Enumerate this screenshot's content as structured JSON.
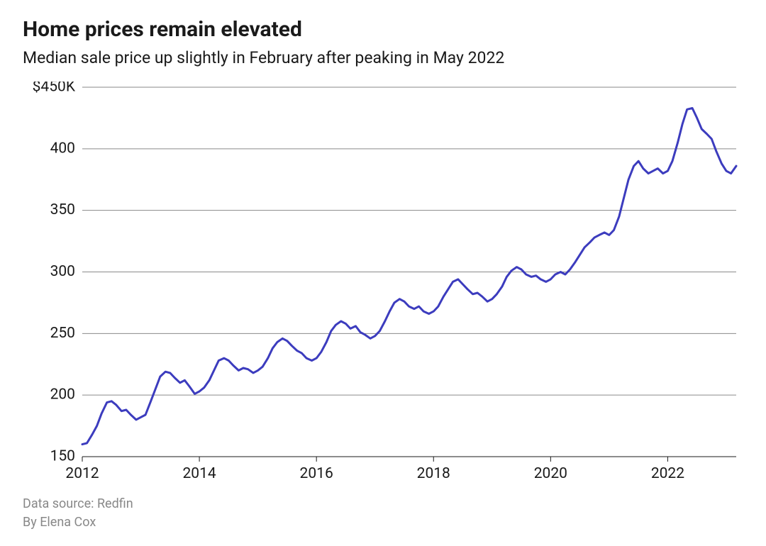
{
  "title": "Home prices remain elevated",
  "subtitle": "Median sale price up slightly in February after peaking in May 2022",
  "footer": {
    "source": "Data source: Redfin",
    "byline": "By Elena Cox"
  },
  "chart": {
    "type": "line",
    "background_color": "#ffffff",
    "grid_color": "#8a8a8a",
    "text_color": "#1a1a1a",
    "line_color": "#3c3cbe",
    "line_width": 3,
    "label_fontsize": 21,
    "title_fontsize": 30,
    "subtitle_fontsize": 23,
    "footer_fontsize": 18,
    "footer_color": "#888888",
    "x": {
      "min": 2012.0,
      "max": 2023.17,
      "ticks": [
        2012,
        2014,
        2016,
        2018,
        2020,
        2022
      ],
      "tick_labels": [
        "2012",
        "2014",
        "2016",
        "2018",
        "2020",
        "2022"
      ]
    },
    "y": {
      "min": 150,
      "max": 450,
      "ticks": [
        150,
        200,
        250,
        300,
        350,
        400,
        450
      ],
      "tick_labels": [
        "150",
        "200",
        "250",
        "300",
        "350",
        "400",
        "$450K"
      ],
      "show_baseline_for": [
        150
      ]
    },
    "series": [
      {
        "name": "median_sale_price_k",
        "points": [
          [
            2012.0,
            160
          ],
          [
            2012.08,
            161
          ],
          [
            2012.17,
            168
          ],
          [
            2012.25,
            175
          ],
          [
            2012.33,
            185
          ],
          [
            2012.42,
            194
          ],
          [
            2012.5,
            195
          ],
          [
            2012.58,
            192
          ],
          [
            2012.67,
            187
          ],
          [
            2012.75,
            188
          ],
          [
            2012.83,
            184
          ],
          [
            2012.92,
            180
          ],
          [
            2013.0,
            182
          ],
          [
            2013.08,
            184
          ],
          [
            2013.17,
            195
          ],
          [
            2013.25,
            205
          ],
          [
            2013.33,
            215
          ],
          [
            2013.42,
            219
          ],
          [
            2013.5,
            218
          ],
          [
            2013.58,
            214
          ],
          [
            2013.67,
            210
          ],
          [
            2013.75,
            212
          ],
          [
            2013.83,
            207
          ],
          [
            2013.92,
            201
          ],
          [
            2014.0,
            203
          ],
          [
            2014.08,
            206
          ],
          [
            2014.17,
            212
          ],
          [
            2014.25,
            220
          ],
          [
            2014.33,
            228
          ],
          [
            2014.42,
            230
          ],
          [
            2014.5,
            228
          ],
          [
            2014.58,
            224
          ],
          [
            2014.67,
            220
          ],
          [
            2014.75,
            222
          ],
          [
            2014.83,
            221
          ],
          [
            2014.92,
            218
          ],
          [
            2015.0,
            220
          ],
          [
            2015.08,
            223
          ],
          [
            2015.17,
            230
          ],
          [
            2015.25,
            238
          ],
          [
            2015.33,
            243
          ],
          [
            2015.42,
            246
          ],
          [
            2015.5,
            244
          ],
          [
            2015.58,
            240
          ],
          [
            2015.67,
            236
          ],
          [
            2015.75,
            234
          ],
          [
            2015.83,
            230
          ],
          [
            2015.92,
            228
          ],
          [
            2016.0,
            230
          ],
          [
            2016.08,
            235
          ],
          [
            2016.17,
            243
          ],
          [
            2016.25,
            252
          ],
          [
            2016.33,
            257
          ],
          [
            2016.42,
            260
          ],
          [
            2016.5,
            258
          ],
          [
            2016.58,
            254
          ],
          [
            2016.67,
            256
          ],
          [
            2016.75,
            251
          ],
          [
            2016.83,
            249
          ],
          [
            2016.92,
            246
          ],
          [
            2017.0,
            248
          ],
          [
            2017.08,
            252
          ],
          [
            2017.17,
            260
          ],
          [
            2017.25,
            268
          ],
          [
            2017.33,
            275
          ],
          [
            2017.42,
            278
          ],
          [
            2017.5,
            276
          ],
          [
            2017.58,
            272
          ],
          [
            2017.67,
            270
          ],
          [
            2017.75,
            272
          ],
          [
            2017.83,
            268
          ],
          [
            2017.92,
            266
          ],
          [
            2018.0,
            268
          ],
          [
            2018.08,
            272
          ],
          [
            2018.17,
            280
          ],
          [
            2018.25,
            286
          ],
          [
            2018.33,
            292
          ],
          [
            2018.42,
            294
          ],
          [
            2018.5,
            290
          ],
          [
            2018.58,
            286
          ],
          [
            2018.67,
            282
          ],
          [
            2018.75,
            283
          ],
          [
            2018.83,
            280
          ],
          [
            2018.92,
            276
          ],
          [
            2019.0,
            278
          ],
          [
            2019.08,
            282
          ],
          [
            2019.17,
            288
          ],
          [
            2019.25,
            296
          ],
          [
            2019.33,
            301
          ],
          [
            2019.42,
            304
          ],
          [
            2019.5,
            302
          ],
          [
            2019.58,
            298
          ],
          [
            2019.67,
            296
          ],
          [
            2019.75,
            297
          ],
          [
            2019.83,
            294
          ],
          [
            2019.92,
            292
          ],
          [
            2020.0,
            294
          ],
          [
            2020.08,
            298
          ],
          [
            2020.17,
            300
          ],
          [
            2020.25,
            298
          ],
          [
            2020.33,
            302
          ],
          [
            2020.42,
            308
          ],
          [
            2020.5,
            314
          ],
          [
            2020.58,
            320
          ],
          [
            2020.67,
            324
          ],
          [
            2020.75,
            328
          ],
          [
            2020.83,
            330
          ],
          [
            2020.92,
            332
          ],
          [
            2021.0,
            330
          ],
          [
            2021.08,
            334
          ],
          [
            2021.17,
            345
          ],
          [
            2021.25,
            360
          ],
          [
            2021.33,
            375
          ],
          [
            2021.42,
            386
          ],
          [
            2021.5,
            390
          ],
          [
            2021.58,
            384
          ],
          [
            2021.67,
            380
          ],
          [
            2021.75,
            382
          ],
          [
            2021.83,
            384
          ],
          [
            2021.92,
            380
          ],
          [
            2022.0,
            382
          ],
          [
            2022.08,
            390
          ],
          [
            2022.17,
            405
          ],
          [
            2022.25,
            420
          ],
          [
            2022.33,
            432
          ],
          [
            2022.42,
            433
          ],
          [
            2022.5,
            425
          ],
          [
            2022.58,
            416
          ],
          [
            2022.67,
            412
          ],
          [
            2022.75,
            408
          ],
          [
            2022.83,
            398
          ],
          [
            2022.92,
            388
          ],
          [
            2023.0,
            382
          ],
          [
            2023.08,
            380
          ],
          [
            2023.17,
            386
          ]
        ]
      }
    ]
  }
}
